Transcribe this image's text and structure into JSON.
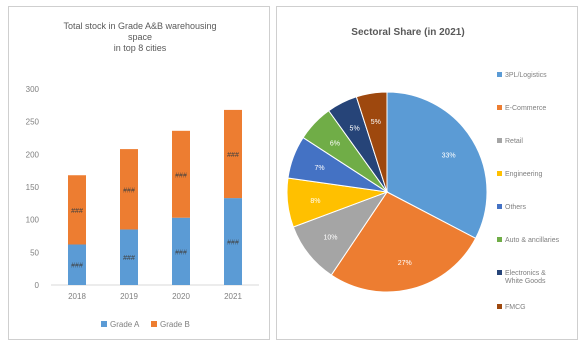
{
  "chart_data": [
    {
      "type": "bar",
      "stacked": true,
      "title_lines": [
        "Total stock in Grade A&B warehousing",
        "space",
        "in top 8 cities"
      ],
      "categories": [
        "2018",
        "2019",
        "2020",
        "2021"
      ],
      "ylim": [
        0,
        300
      ],
      "yticks": [
        0,
        50,
        100,
        150,
        200,
        250,
        300
      ],
      "series": [
        {
          "name": "Grade A",
          "values": [
            62,
            85,
            103,
            133
          ],
          "labels": [
            "###",
            "###",
            "###",
            "###"
          ],
          "color": "#5b9bd5"
        },
        {
          "name": "Grade B",
          "values": [
            106,
            123,
            133,
            135
          ],
          "labels": [
            "###",
            "###",
            "###",
            "###"
          ],
          "color": "#ed7d31"
        }
      ],
      "legend_position": "bottom",
      "grid": false
    },
    {
      "type": "pie",
      "title": "Sectoral Share (in 2021)",
      "slices": [
        {
          "name": "3PL/Logistics",
          "value": 33,
          "label": "33%",
          "color": "#5b9bd5"
        },
        {
          "name": "E-Commerce",
          "value": 27,
          "label": "27%",
          "color": "#ed7d31"
        },
        {
          "name": "Retail",
          "value": 10,
          "label": "10%",
          "color": "#a5a5a5"
        },
        {
          "name": "Engineering",
          "value": 8,
          "label": "8%",
          "color": "#ffc000"
        },
        {
          "name": "Others",
          "value": 7,
          "label": "7%",
          "color": "#4472c4"
        },
        {
          "name": "Auto & ancillaries",
          "value": 6,
          "label": "6%",
          "color": "#70ad47"
        },
        {
          "name": "Electronics & White Goods",
          "value": 5,
          "label": "5%",
          "color": "#264478"
        },
        {
          "name": "FMCG",
          "value": 5,
          "label": "5%",
          "color": "#9e480e"
        }
      ],
      "legend_position": "right"
    }
  ]
}
